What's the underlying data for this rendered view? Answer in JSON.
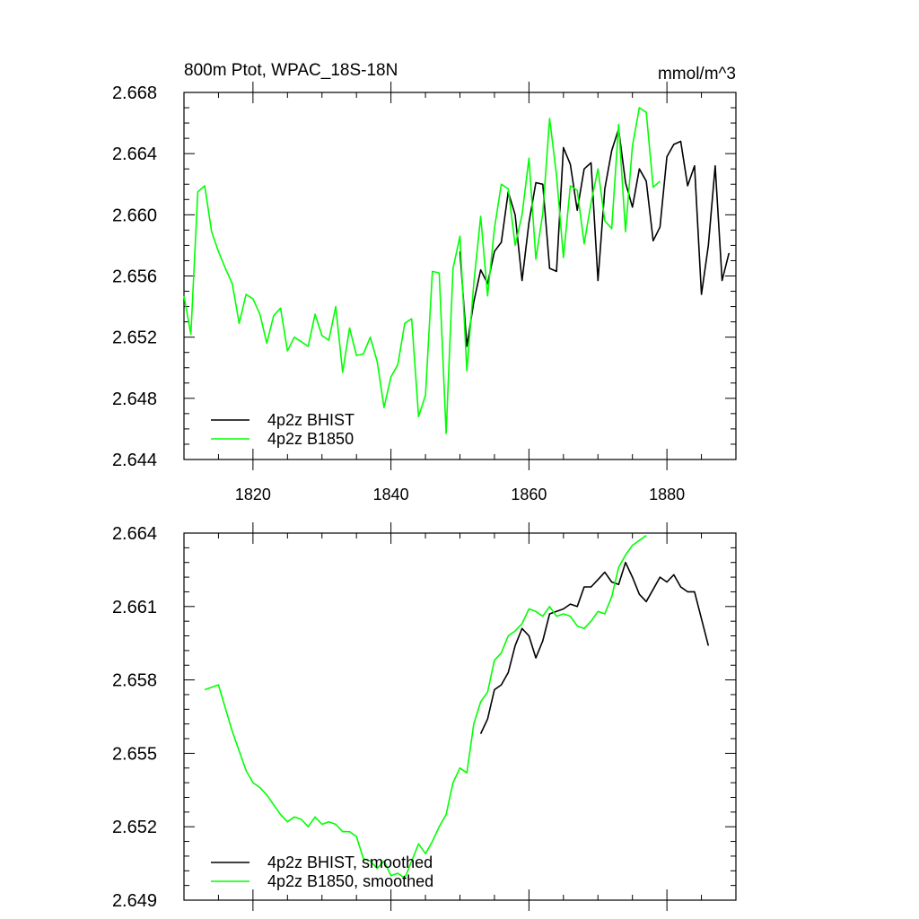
{
  "chart_data": [
    {
      "type": "line",
      "title": "800m Ptot, WPAC_18S-18N",
      "units": "mmol/m^3",
      "xlim": [
        1810,
        1890
      ],
      "ylim": [
        2.644,
        2.668
      ],
      "x_ticks": [
        1820,
        1840,
        1860,
        1880
      ],
      "y_ticks": [
        "2.644",
        "2.648",
        "2.652",
        "2.656",
        "2.660",
        "2.664",
        "2.668"
      ],
      "grid": false,
      "legend_position": "bottom-left",
      "series": [
        {
          "name": "4p2z BHIST",
          "color": "#000000",
          "x": [
            1850,
            1851,
            1852,
            1853,
            1854,
            1855,
            1856,
            1857,
            1858,
            1859,
            1860,
            1861,
            1862,
            1863,
            1864,
            1865,
            1866,
            1867,
            1868,
            1869,
            1870,
            1871,
            1872,
            1873,
            1874,
            1875,
            1876,
            1877,
            1878,
            1879,
            1880,
            1881,
            1882,
            1883,
            1884,
            1885,
            1886,
            1887,
            1888,
            1889
          ],
          "y": [
            2.6576,
            2.6514,
            2.6543,
            2.6564,
            2.6555,
            2.6576,
            2.6582,
            2.6615,
            2.66,
            2.6557,
            2.6595,
            2.6621,
            2.662,
            2.6565,
            2.6563,
            2.6644,
            2.6633,
            2.6603,
            2.663,
            2.6634,
            2.6557,
            2.6617,
            2.6642,
            2.6656,
            2.6621,
            2.6605,
            2.663,
            2.6622,
            2.6583,
            2.6592,
            2.6638,
            2.6646,
            2.6648,
            2.6619,
            2.6632,
            2.6548,
            2.658,
            2.6632,
            2.6557,
            2.6575
          ]
        },
        {
          "name": "4p2z B1850",
          "color": "#00ff00",
          "x": [
            1810,
            1811,
            1812,
            1813,
            1814,
            1815,
            1816,
            1817,
            1818,
            1819,
            1820,
            1821,
            1822,
            1823,
            1824,
            1825,
            1826,
            1827,
            1828,
            1829,
            1830,
            1831,
            1832,
            1833,
            1834,
            1835,
            1836,
            1837,
            1838,
            1839,
            1840,
            1841,
            1842,
            1843,
            1844,
            1845,
            1846,
            1847,
            1848,
            1849,
            1850,
            1851,
            1852,
            1853,
            1854,
            1855,
            1856,
            1857,
            1858,
            1859,
            1860,
            1861,
            1862,
            1863,
            1864,
            1865,
            1866,
            1867,
            1868,
            1869,
            1870,
            1871,
            1872,
            1873,
            1874,
            1875,
            1876,
            1877,
            1878,
            1879
          ],
          "y": [
            2.6547,
            2.6522,
            2.6615,
            2.6619,
            2.6589,
            2.6576,
            2.6565,
            2.6555,
            2.6529,
            2.6548,
            2.6545,
            2.6535,
            2.6516,
            2.6534,
            2.6539,
            2.6511,
            2.652,
            2.6517,
            2.6514,
            2.6535,
            2.6521,
            2.6518,
            2.654,
            2.6497,
            2.6526,
            2.6508,
            2.6509,
            2.652,
            2.6504,
            2.6474,
            2.6494,
            2.6502,
            2.6529,
            2.6532,
            2.6468,
            2.6482,
            2.6563,
            2.6562,
            2.6457,
            2.6565,
            2.6586,
            2.6498,
            2.6555,
            2.6599,
            2.6547,
            2.6591,
            2.662,
            2.6617,
            2.658,
            2.66,
            2.6637,
            2.6571,
            2.6601,
            2.6663,
            2.6626,
            2.6572,
            2.6619,
            2.6616,
            2.6581,
            2.6608,
            2.663,
            2.6596,
            2.6591,
            2.6659,
            2.6589,
            2.6645,
            2.667,
            2.6667,
            2.6618,
            2.6622
          ]
        }
      ]
    },
    {
      "type": "line",
      "title": "",
      "xlim": [
        1810,
        1890
      ],
      "ylim": [
        2.649,
        2.664
      ],
      "x_ticks": [
        1820,
        1840,
        1860,
        1880
      ],
      "x_tick_labels_visible": false,
      "y_ticks": [
        "2.649",
        "2.652",
        "2.655",
        "2.658",
        "2.661",
        "2.664"
      ],
      "grid": false,
      "legend_position": "bottom-left",
      "series": [
        {
          "name": "4p2z BHIST, smoothed",
          "color": "#000000",
          "x": [
            1853,
            1854,
            1855,
            1856,
            1857,
            1858,
            1859,
            1860,
            1861,
            1862,
            1863,
            1864,
            1865,
            1866,
            1867,
            1868,
            1869,
            1870,
            1871,
            1872,
            1873,
            1874,
            1875,
            1876,
            1877,
            1878,
            1879,
            1880,
            1881,
            1882,
            1883,
            1884,
            1885,
            1886
          ],
          "y": [
            2.6558,
            2.6564,
            2.6576,
            2.6578,
            2.6583,
            2.6594,
            2.6601,
            2.6598,
            2.6589,
            2.6596,
            2.6607,
            2.6608,
            2.6609,
            2.6611,
            2.661,
            2.6618,
            2.6618,
            2.6621,
            2.6624,
            2.662,
            2.6619,
            2.6628,
            2.6622,
            2.6615,
            2.6612,
            2.6617,
            2.6622,
            2.662,
            2.6623,
            2.6618,
            2.6616,
            2.6616,
            2.6605,
            2.6594
          ]
        },
        {
          "name": "4p2z B1850, smoothed",
          "color": "#00ff00",
          "x": [
            1813,
            1815,
            1817,
            1819,
            1820,
            1821,
            1822,
            1823,
            1824,
            1825,
            1826,
            1827,
            1828,
            1829,
            1830,
            1831,
            1832,
            1833,
            1834,
            1835,
            1836,
            1837,
            1838,
            1839,
            1840,
            1841,
            1842,
            1843,
            1844,
            1845,
            1846,
            1847,
            1848,
            1849,
            1850,
            1851,
            1852,
            1853,
            1854,
            1855,
            1856,
            1857,
            1858,
            1859,
            1860,
            1861,
            1862,
            1863,
            1864,
            1865,
            1866,
            1867,
            1868,
            1869,
            1870,
            1871,
            1872,
            1873,
            1874,
            1875,
            1876,
            1877
          ],
          "y": [
            2.6576,
            2.6578,
            2.6559,
            2.6543,
            2.6538,
            2.6536,
            2.6533,
            2.6529,
            2.6525,
            2.6522,
            2.6524,
            2.6523,
            2.652,
            2.6524,
            2.6521,
            2.6522,
            2.6521,
            2.6518,
            2.6518,
            2.6516,
            2.6507,
            2.6506,
            2.6503,
            2.6506,
            2.65,
            2.6501,
            2.6499,
            2.6506,
            2.6513,
            2.6509,
            2.6514,
            2.652,
            2.6525,
            2.6538,
            2.6544,
            2.6542,
            2.6562,
            2.6571,
            2.6575,
            2.6588,
            2.6591,
            2.6598,
            2.66,
            2.6603,
            2.6609,
            2.6608,
            2.6606,
            2.661,
            2.6606,
            2.6607,
            2.6606,
            2.6602,
            2.6601,
            2.6604,
            2.6608,
            2.6607,
            2.6614,
            2.6626,
            2.6631,
            2.6635,
            2.6637,
            2.6639
          ]
        }
      ]
    }
  ]
}
